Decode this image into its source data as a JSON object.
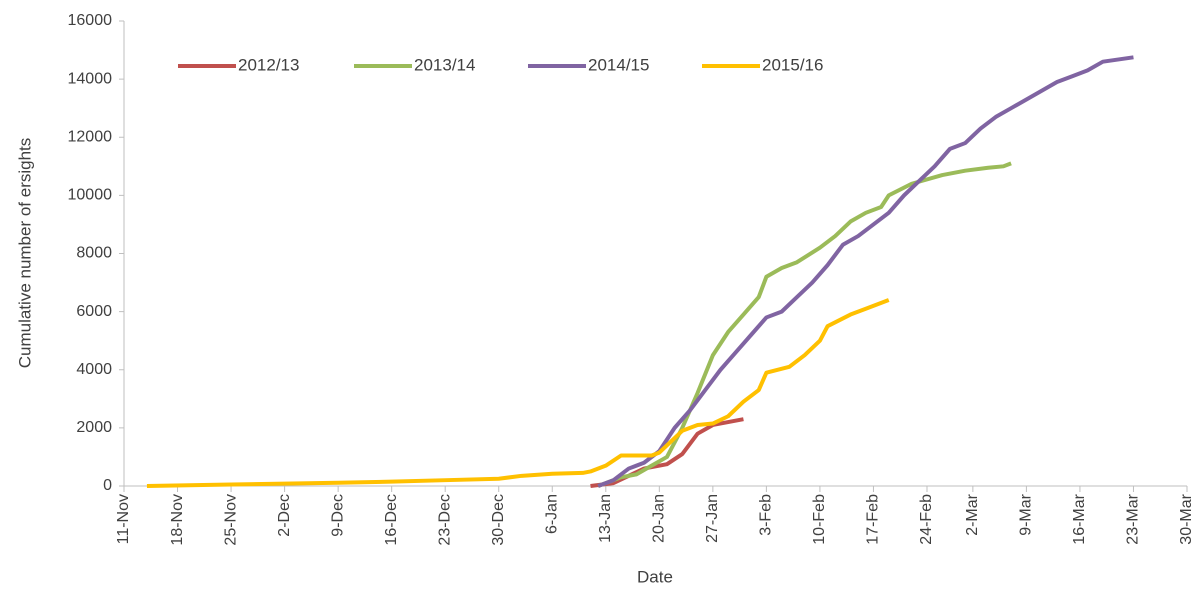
{
  "chart_data": {
    "type": "line",
    "y_label": "Cumulative number of ersights",
    "x_label": "Date",
    "xlim": [
      "11-Nov",
      "30-Mar"
    ],
    "xticks": [
      "11-Nov",
      "18-Nov",
      "25-Nov",
      "2-Dec",
      "9-Dec",
      "16-Dec",
      "23-Dec",
      "30-Dec",
      "6-Jan",
      "13-Jan",
      "20-Jan",
      "27-Jan",
      "3-Feb",
      "10-Feb",
      "17-Feb",
      "24-Feb",
      "2-Mar",
      "9-Mar",
      "16-Mar",
      "23-Mar",
      "30-Mar"
    ],
    "ylim": [
      0,
      16000
    ],
    "yticks": [
      0,
      2000,
      4000,
      6000,
      8000,
      10000,
      12000,
      14000,
      16000
    ],
    "grid": false,
    "legend": "top-left",
    "series": [
      {
        "name": "2012/13",
        "color": "#c0504d",
        "x": [
          "11-Jan",
          "14-Jan",
          "18-Jan",
          "21-Jan",
          "23-Jan",
          "25-Jan",
          "27-Jan",
          "29-Jan",
          "31-Jan"
        ],
        "values": [
          0,
          100,
          600,
          750,
          1100,
          1800,
          2100,
          2200,
          2300
        ]
      },
      {
        "name": "2013/14",
        "color": "#9bbb59",
        "x": [
          "12-Jan",
          "15-Jan",
          "17-Jan",
          "19-Jan",
          "21-Jan",
          "23-Jan",
          "25-Jan",
          "27-Jan",
          "29-Jan",
          "31-Jan",
          "2-Feb",
          "3-Feb",
          "5-Feb",
          "7-Feb",
          "10-Feb",
          "12-Feb",
          "14-Feb",
          "16-Feb",
          "18-Feb",
          "19-Feb",
          "22-Feb",
          "26-Feb",
          "1-Mar",
          "4-Mar",
          "6-Mar",
          "7-Mar"
        ],
        "values": [
          0,
          300,
          400,
          700,
          1000,
          2000,
          3200,
          4500,
          5300,
          5900,
          6500,
          7200,
          7500,
          7700,
          8200,
          8600,
          9100,
          9400,
          9600,
          10000,
          10400,
          10700,
          10850,
          10950,
          11000,
          11100
        ]
      },
      {
        "name": "2014/15",
        "color": "#8064a2",
        "x": [
          "12-Jan",
          "14-Jan",
          "16-Jan",
          "18-Jan",
          "20-Jan",
          "22-Jan",
          "24-Jan",
          "26-Jan",
          "28-Jan",
          "30-Jan",
          "1-Feb",
          "3-Feb",
          "5-Feb",
          "7-Feb",
          "9-Feb",
          "11-Feb",
          "13-Feb",
          "15-Feb",
          "17-Feb",
          "19-Feb",
          "21-Feb",
          "23-Feb",
          "25-Feb",
          "27-Feb",
          "1-Mar",
          "3-Mar",
          "5-Mar",
          "7-Mar",
          "9-Mar",
          "11-Mar",
          "13-Mar",
          "15-Mar",
          "17-Mar",
          "19-Mar",
          "23-Mar"
        ],
        "values": [
          0,
          200,
          600,
          800,
          1200,
          2000,
          2600,
          3300,
          4000,
          4600,
          5200,
          5800,
          6000,
          6500,
          7000,
          7600,
          8300,
          8600,
          9000,
          9400,
          10000,
          10500,
          11000,
          11600,
          11800,
          12300,
          12700,
          13000,
          13300,
          13600,
          13900,
          14100,
          14300,
          14600,
          14750
        ]
      },
      {
        "name": "2015/16",
        "color": "#ffc000",
        "x": [
          "14-Nov",
          "25-Nov",
          "2-Dec",
          "9-Dec",
          "16-Dec",
          "23-Dec",
          "30-Dec",
          "2-Jan",
          "6-Jan",
          "10-Jan",
          "11-Jan",
          "13-Jan",
          "15-Jan",
          "19-Jan",
          "20-Jan",
          "21-Jan",
          "23-Jan",
          "25-Jan",
          "27-Jan",
          "29-Jan",
          "31-Jan",
          "2-Feb",
          "3-Feb",
          "6-Feb",
          "8-Feb",
          "10-Feb",
          "11-Feb",
          "14-Feb",
          "16-Feb",
          "19-Feb"
        ],
        "values": [
          0,
          50,
          80,
          110,
          150,
          200,
          250,
          350,
          420,
          450,
          500,
          700,
          1050,
          1050,
          1150,
          1400,
          1900,
          2100,
          2150,
          2400,
          2900,
          3300,
          3900,
          4100,
          4500,
          5000,
          5500,
          5900,
          6100,
          6400
        ]
      }
    ]
  }
}
